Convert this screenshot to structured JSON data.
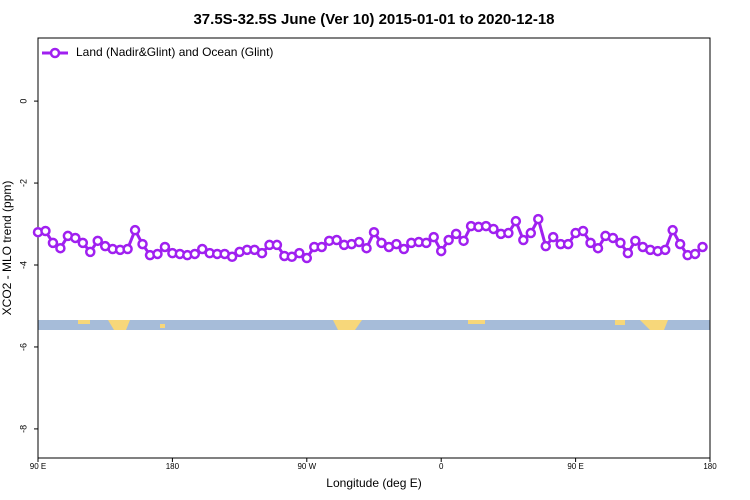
{
  "chart_data": {
    "type": "line",
    "title": "37.5S-32.5S June (Ver 10)   2015-01-01 to 2020-12-18",
    "x_label": "Longitude (deg E)",
    "y_label": "XCO2 - MLO trend (ppm)",
    "xlim": [
      90,
      540
    ],
    "ylim": [
      -8.71,
      1.54
    ],
    "xticks": [
      {
        "value": 90,
        "label": "90 E"
      },
      180,
      {
        "value": 270,
        "label": "90 W"
      },
      {
        "value": 360,
        "label": "0"
      },
      {
        "value": 450,
        "label": "90 E"
      },
      {
        "value": 540,
        "label": "180"
      }
    ],
    "yticks": [
      0,
      -2,
      -4,
      -6,
      -8
    ],
    "legend": "top-left",
    "x": [
      90,
      95,
      100,
      105,
      110,
      115,
      120,
      125,
      130,
      135,
      140,
      145,
      150,
      155,
      160,
      165,
      170,
      175,
      180,
      185,
      190,
      195,
      200,
      205,
      210,
      215,
      220,
      225,
      230,
      235,
      240,
      245,
      250,
      255,
      260,
      265,
      270,
      275,
      280,
      285,
      290,
      295,
      300,
      305,
      310,
      315,
      320,
      325,
      330,
      335,
      340,
      345,
      350,
      355,
      360,
      365,
      370,
      375,
      380,
      385,
      390,
      395,
      400,
      405,
      410,
      415,
      420,
      425,
      430,
      435,
      440,
      445,
      450,
      455,
      460,
      465,
      470,
      475,
      480,
      485,
      490,
      495,
      500,
      505,
      510,
      515,
      520,
      525,
      530,
      535
    ],
    "series": [
      {
        "name": "Land (Nadir&Glint) and Ocean (Glint)",
        "color": "#a020f0",
        "values": [
          -3.2,
          -3.17,
          -3.46,
          -3.59,
          -3.29,
          -3.34,
          -3.46,
          -3.68,
          -3.41,
          -3.54,
          -3.61,
          -3.63,
          -3.61,
          -3.15,
          -3.49,
          -3.76,
          -3.73,
          -3.56,
          -3.71,
          -3.73,
          -3.76,
          -3.73,
          -3.61,
          -3.71,
          -3.73,
          -3.73,
          -3.8,
          -3.68,
          -3.63,
          -3.63,
          -3.71,
          -3.51,
          -3.51,
          -3.78,
          -3.8,
          -3.71,
          -3.83,
          -3.56,
          -3.56,
          -3.41,
          -3.39,
          -3.51,
          -3.49,
          -3.44,
          -3.59,
          -3.2,
          -3.46,
          -3.56,
          -3.49,
          -3.61,
          -3.46,
          -3.44,
          -3.46,
          -3.32,
          -3.66,
          -3.39,
          -3.24,
          -3.41,
          -3.05,
          -3.07,
          -3.05,
          -3.12,
          -3.24,
          -3.22,
          -2.93,
          -3.39,
          -3.22,
          -2.88,
          -3.54,
          -3.32,
          -3.49,
          -3.49,
          -3.22,
          -3.17,
          -3.46,
          -3.59,
          -3.29,
          -3.34,
          -3.46,
          -3.71,
          -3.41,
          -3.56,
          -3.63,
          -3.66,
          -3.63,
          -3.15,
          -3.49,
          -3.76,
          -3.73,
          -3.56
        ]
      }
    ]
  }
}
